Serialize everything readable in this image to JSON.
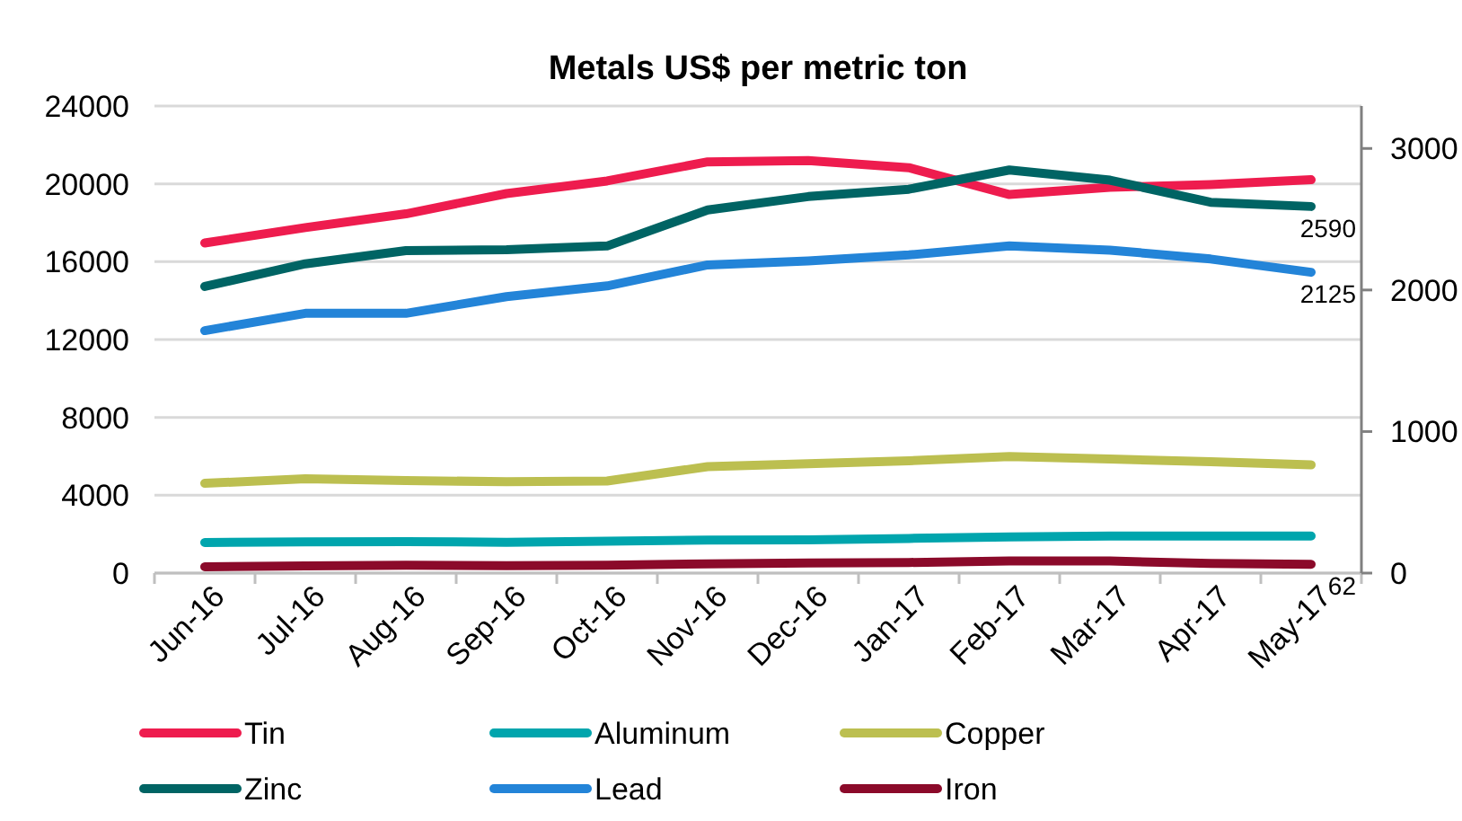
{
  "chart_data": {
    "type": "line",
    "title": "Metals US$ per metric ton",
    "categories": [
      "Jun-16",
      "Jul-16",
      "Aug-16",
      "Sep-16",
      "Oct-16",
      "Nov-16",
      "Dec-16",
      "Jan-17",
      "Feb-17",
      "Mar-17",
      "Apr-17",
      "May-17"
    ],
    "series": [
      {
        "name": "Tin",
        "color": "#ee1c4e",
        "values": [
          16960,
          17750,
          18460,
          19500,
          20150,
          21130,
          21200,
          20830,
          19450,
          19820,
          19960,
          20210
        ]
      },
      {
        "name": "Aluminum",
        "color": "#00a5ad",
        "values": [
          1570,
          1600,
          1620,
          1580,
          1640,
          1700,
          1710,
          1780,
          1860,
          1900,
          1900,
          1900
        ]
      },
      {
        "name": "Copper",
        "color": "#bcbf50",
        "values": [
          4610,
          4850,
          4750,
          4700,
          4730,
          5470,
          5620,
          5770,
          5990,
          5860,
          5720,
          5560
        ]
      },
      {
        "name": "Zinc",
        "color": "#006464",
        "axis": "y2",
        "values": [
          2025,
          2185,
          2278,
          2285,
          2311,
          2565,
          2660,
          2712,
          2848,
          2776,
          2620,
          2590
        ],
        "value_labels": [
          null,
          null,
          null,
          null,
          null,
          null,
          null,
          null,
          null,
          null,
          null,
          "2590"
        ]
      },
      {
        "name": "Lead",
        "color": "#2384d8",
        "axis": "y2",
        "values": [
          1713,
          1835,
          1835,
          1953,
          2029,
          2177,
          2206,
          2248,
          2311,
          2282,
          2219,
          2125
        ],
        "value_labels": [
          null,
          null,
          null,
          null,
          null,
          null,
          null,
          null,
          null,
          null,
          null,
          "2125"
        ]
      },
      {
        "name": "Iron",
        "color": "#8b0a2a",
        "axis": "y2",
        "values": [
          45,
          50,
          55,
          52,
          55,
          65,
          72,
          75,
          85,
          85,
          68,
          62
        ],
        "value_labels": [
          null,
          null,
          null,
          null,
          null,
          null,
          null,
          null,
          null,
          null,
          null,
          "62"
        ]
      }
    ],
    "ylim": [
      0,
      24000
    ],
    "yticks": [
      0,
      4000,
      8000,
      12000,
      16000,
      20000,
      24000
    ],
    "y2lim": [
      0,
      3300
    ],
    "y2ticks": [
      0,
      1000,
      2000,
      3000
    ],
    "grid": "y",
    "legend": "bottom",
    "marker": "none",
    "line_style": "solid"
  }
}
